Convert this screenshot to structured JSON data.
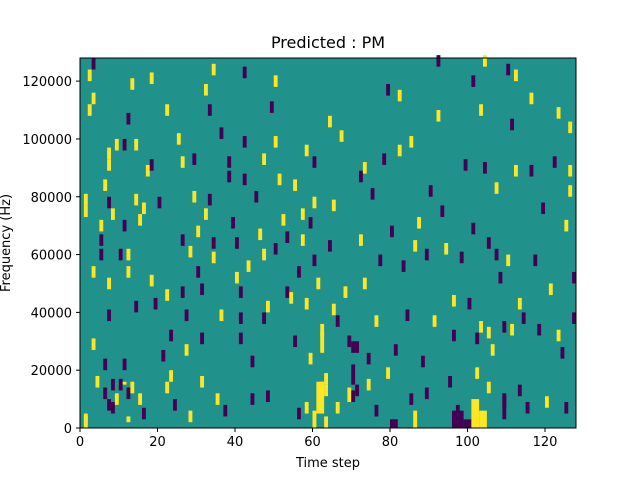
{
  "chart_data": {
    "type": "heatmap",
    "title": "Predicted : PM",
    "xlabel": "Time step",
    "ylabel": "Frequency (Hz)",
    "xlim": [
      0,
      128
    ],
    "ylim": [
      0,
      128000
    ],
    "x_ticks": [
      0,
      20,
      40,
      60,
      80,
      100,
      120
    ],
    "x_tick_labels": [
      "0",
      "20",
      "40",
      "60",
      "80",
      "100",
      "120"
    ],
    "y_ticks": [
      0,
      20000,
      40000,
      60000,
      80000,
      100000,
      120000
    ],
    "y_tick_labels": [
      "0",
      "20000",
      "40000",
      "60000",
      "80000",
      "100000",
      "120000"
    ],
    "grid": false,
    "colormap": "viridis",
    "colors": {
      "background": "#21918c",
      "high": "#fde725",
      "low": "#440154"
    },
    "n_time_steps": 128,
    "n_frequency_bins": 128,
    "bin_width_hz": 1000,
    "background_value": "medium",
    "cells": [
      {
        "t": 1,
        "f": 0,
        "v": "high"
      },
      {
        "t": 1,
        "f": 1,
        "v": "high"
      },
      {
        "t": 3,
        "f": 124,
        "v": "low"
      },
      {
        "t": 2,
        "f": 120,
        "v": "high"
      },
      {
        "t": 3,
        "f": 112,
        "v": "high"
      },
      {
        "t": 2,
        "f": 108,
        "v": "high"
      },
      {
        "t": 1,
        "f": 77,
        "v": "high"
      },
      {
        "t": 1,
        "f": 73,
        "v": "high"
      },
      {
        "t": 3,
        "f": 52,
        "v": "high"
      },
      {
        "t": 3,
        "f": 27,
        "v": "high"
      },
      {
        "t": 4,
        "f": 14,
        "v": "high"
      },
      {
        "t": 5,
        "f": 68,
        "v": "high"
      },
      {
        "t": 5,
        "f": 63,
        "v": "low"
      },
      {
        "t": 5,
        "f": 58,
        "v": "low"
      },
      {
        "t": 6,
        "f": 82,
        "v": "high"
      },
      {
        "t": 6,
        "f": 20,
        "v": "low"
      },
      {
        "t": 6,
        "f": 10,
        "v": "low"
      },
      {
        "t": 7,
        "f": 93,
        "v": "high"
      },
      {
        "t": 7,
        "f": 89,
        "v": "high"
      },
      {
        "t": 7,
        "f": 76,
        "v": "low"
      },
      {
        "t": 7,
        "f": 48,
        "v": "high"
      },
      {
        "t": 7,
        "f": 37,
        "v": "low"
      },
      {
        "t": 7,
        "f": 6,
        "v": "low"
      },
      {
        "t": 8,
        "f": 72,
        "v": "high"
      },
      {
        "t": 8,
        "f": 13,
        "v": "low"
      },
      {
        "t": 8,
        "f": 5,
        "v": "low"
      },
      {
        "t": 9,
        "f": 96,
        "v": "high"
      },
      {
        "t": 9,
        "f": 8,
        "v": "high"
      },
      {
        "t": 10,
        "f": 58,
        "v": "low"
      },
      {
        "t": 10,
        "f": 13,
        "v": "low"
      },
      {
        "t": 11,
        "f": 96,
        "v": "low"
      },
      {
        "t": 11,
        "f": 68,
        "v": "low"
      },
      {
        "t": 11,
        "f": 20,
        "v": "low"
      },
      {
        "t": 12,
        "f": 105,
        "v": "low"
      },
      {
        "t": 12,
        "f": 58,
        "v": "high"
      },
      {
        "t": 12,
        "f": 52,
        "v": "high"
      },
      {
        "t": 12,
        "f": 10,
        "v": "low"
      },
      {
        "t": 13,
        "f": 117,
        "v": "high"
      },
      {
        "t": 13,
        "f": 12,
        "v": "high"
      },
      {
        "t": 14,
        "f": 96,
        "v": "high"
      },
      {
        "t": 14,
        "f": 77,
        "v": "high"
      },
      {
        "t": 14,
        "f": 40,
        "v": "low"
      },
      {
        "t": 15,
        "f": 70,
        "v": "high"
      },
      {
        "t": 15,
        "f": 8,
        "v": "high"
      },
      {
        "t": 16,
        "f": 74,
        "v": "high"
      },
      {
        "t": 16,
        "f": 3,
        "v": "low"
      },
      {
        "t": 17,
        "f": 87,
        "v": "high"
      },
      {
        "t": 18,
        "f": 119,
        "v": "high"
      },
      {
        "t": 18,
        "f": 89,
        "v": "low"
      },
      {
        "t": 18,
        "f": 49,
        "v": "high"
      },
      {
        "t": 19,
        "f": 41,
        "v": "low"
      },
      {
        "t": 20,
        "f": 76,
        "v": "low"
      },
      {
        "t": 21,
        "f": 23,
        "v": "low"
      },
      {
        "t": 22,
        "f": 108,
        "v": "high"
      },
      {
        "t": 22,
        "f": 44,
        "v": "high"
      },
      {
        "t": 22,
        "f": 12,
        "v": "high"
      },
      {
        "t": 23,
        "f": 30,
        "v": "low"
      },
      {
        "t": 23,
        "f": 16,
        "v": "high"
      },
      {
        "t": 24,
        "f": 6,
        "v": "low"
      },
      {
        "t": 25,
        "f": 98,
        "v": "high"
      },
      {
        "t": 26,
        "f": 90,
        "v": "high"
      },
      {
        "t": 26,
        "f": 63,
        "v": "low"
      },
      {
        "t": 26,
        "f": 45,
        "v": "low"
      },
      {
        "t": 27,
        "f": 37,
        "v": "low"
      },
      {
        "t": 27,
        "f": 25,
        "v": "high"
      },
      {
        "t": 28,
        "f": 59,
        "v": "high"
      },
      {
        "t": 28,
        "f": 2,
        "v": "high"
      },
      {
        "t": 29,
        "f": 91,
        "v": "low"
      },
      {
        "t": 29,
        "f": 78,
        "v": "high"
      },
      {
        "t": 30,
        "f": 66,
        "v": "high"
      },
      {
        "t": 30,
        "f": 52,
        "v": "low"
      },
      {
        "t": 31,
        "f": 46,
        "v": "low"
      },
      {
        "t": 31,
        "f": 29,
        "v": "low"
      },
      {
        "t": 31,
        "f": 14,
        "v": "high"
      },
      {
        "t": 32,
        "f": 115,
        "v": "high"
      },
      {
        "t": 32,
        "f": 72,
        "v": "high"
      },
      {
        "t": 33,
        "f": 108,
        "v": "low"
      },
      {
        "t": 33,
        "f": 77,
        "v": "low"
      },
      {
        "t": 34,
        "f": 122,
        "v": "high"
      },
      {
        "t": 34,
        "f": 62,
        "v": "low"
      },
      {
        "t": 34,
        "f": 57,
        "v": "high"
      },
      {
        "t": 35,
        "f": 8,
        "v": "high"
      },
      {
        "t": 36,
        "f": 100,
        "v": "low"
      },
      {
        "t": 36,
        "f": 37,
        "v": "high"
      },
      {
        "t": 37,
        "f": 4,
        "v": "low"
      },
      {
        "t": 38,
        "f": 90,
        "v": "low"
      },
      {
        "t": 38,
        "f": 85,
        "v": "low"
      },
      {
        "t": 39,
        "f": 69,
        "v": "low"
      },
      {
        "t": 40,
        "f": 62,
        "v": "low"
      },
      {
        "t": 40,
        "f": 50,
        "v": "high"
      },
      {
        "t": 41,
        "f": 45,
        "v": "low"
      },
      {
        "t": 41,
        "f": 36,
        "v": "low"
      },
      {
        "t": 41,
        "f": 29,
        "v": "low"
      },
      {
        "t": 42,
        "f": 121,
        "v": "low"
      },
      {
        "t": 42,
        "f": 97,
        "v": "low"
      },
      {
        "t": 42,
        "f": 84,
        "v": "low"
      },
      {
        "t": 43,
        "f": 54,
        "v": "high"
      },
      {
        "t": 44,
        "f": 21,
        "v": "low"
      },
      {
        "t": 44,
        "f": 8,
        "v": "low"
      },
      {
        "t": 45,
        "f": 78,
        "v": "low"
      },
      {
        "t": 46,
        "f": 65,
        "v": "high"
      },
      {
        "t": 47,
        "f": 91,
        "v": "high"
      },
      {
        "t": 47,
        "f": 58,
        "v": "high"
      },
      {
        "t": 47,
        "f": 36,
        "v": "low"
      },
      {
        "t": 48,
        "f": 40,
        "v": "high"
      },
      {
        "t": 48,
        "f": 9,
        "v": "low"
      },
      {
        "t": 49,
        "f": 109,
        "v": "low"
      },
      {
        "t": 50,
        "f": 118,
        "v": "high"
      },
      {
        "t": 50,
        "f": 97,
        "v": "high"
      },
      {
        "t": 50,
        "f": 60,
        "v": "low"
      },
      {
        "t": 51,
        "f": 84,
        "v": "high"
      },
      {
        "t": 52,
        "f": 70,
        "v": "high"
      },
      {
        "t": 53,
        "f": 64,
        "v": "low"
      },
      {
        "t": 53,
        "f": 45,
        "v": "low"
      },
      {
        "t": 54,
        "f": 43,
        "v": "high"
      },
      {
        "t": 55,
        "f": 82,
        "v": "high"
      },
      {
        "t": 55,
        "f": 28,
        "v": "low"
      },
      {
        "t": 56,
        "f": 52,
        "v": "low"
      },
      {
        "t": 56,
        "f": 3,
        "v": "low"
      },
      {
        "t": 57,
        "f": 72,
        "v": "high"
      },
      {
        "t": 57,
        "f": 63,
        "v": "high"
      },
      {
        "t": 58,
        "f": 94,
        "v": "high"
      },
      {
        "t": 58,
        "f": 41,
        "v": "high"
      },
      {
        "t": 58,
        "f": 5,
        "v": "high"
      },
      {
        "t": 59,
        "f": 69,
        "v": "low"
      },
      {
        "t": 59,
        "f": 22,
        "v": "high"
      },
      {
        "t": 60,
        "f": 90,
        "v": "low"
      },
      {
        "t": 60,
        "f": 76,
        "v": "high"
      },
      {
        "t": 60,
        "f": 56,
        "v": "low"
      },
      {
        "t": 61,
        "f": 48,
        "v": "high"
      },
      {
        "t": 62,
        "f": 32,
        "v": "high"
      },
      {
        "t": 62,
        "f": 12,
        "v": "high"
      },
      {
        "t": 63,
        "f": 15,
        "v": "high"
      },
      {
        "t": 63,
        "f": 11,
        "v": "high"
      },
      {
        "t": 64,
        "f": 104,
        "v": "high"
      },
      {
        "t": 64,
        "f": 61,
        "v": "low"
      },
      {
        "t": 65,
        "f": 75,
        "v": "high"
      },
      {
        "t": 65,
        "f": 39,
        "v": "high"
      },
      {
        "t": 66,
        "f": 35,
        "v": "low"
      },
      {
        "t": 66,
        "f": 5,
        "v": "high"
      },
      {
        "t": 67,
        "f": 99,
        "v": "high"
      },
      {
        "t": 68,
        "f": 45,
        "v": "high"
      },
      {
        "t": 69,
        "f": 28,
        "v": "low"
      },
      {
        "t": 70,
        "f": 9,
        "v": "low"
      },
      {
        "t": 71,
        "f": 11,
        "v": "low"
      },
      {
        "t": 72,
        "f": 85,
        "v": "low"
      },
      {
        "t": 72,
        "f": 63,
        "v": "high"
      },
      {
        "t": 73,
        "f": 88,
        "v": "high"
      },
      {
        "t": 73,
        "f": 48,
        "v": "high"
      },
      {
        "t": 74,
        "f": 22,
        "v": "low"
      },
      {
        "t": 74,
        "f": 13,
        "v": "high"
      },
      {
        "t": 75,
        "f": 79,
        "v": "low"
      },
      {
        "t": 76,
        "f": 35,
        "v": "high"
      },
      {
        "t": 76,
        "f": 4,
        "v": "low"
      },
      {
        "t": 77,
        "f": 56,
        "v": "low"
      },
      {
        "t": 78,
        "f": 91,
        "v": "low"
      },
      {
        "t": 79,
        "f": 115,
        "v": "low"
      },
      {
        "t": 79,
        "f": 17,
        "v": "high"
      },
      {
        "t": 80,
        "f": 66,
        "v": "low"
      },
      {
        "t": 81,
        "f": 25,
        "v": "low"
      },
      {
        "t": 82,
        "f": 113,
        "v": "high"
      },
      {
        "t": 82,
        "f": 94,
        "v": "high"
      },
      {
        "t": 83,
        "f": 54,
        "v": "low"
      },
      {
        "t": 84,
        "f": 37,
        "v": "low"
      },
      {
        "t": 85,
        "f": 97,
        "v": "high"
      },
      {
        "t": 85,
        "f": 8,
        "v": "low"
      },
      {
        "t": 86,
        "f": 61,
        "v": "high"
      },
      {
        "t": 87,
        "f": 69,
        "v": "high"
      },
      {
        "t": 88,
        "f": 21,
        "v": "low"
      },
      {
        "t": 89,
        "f": 58,
        "v": "low"
      },
      {
        "t": 89,
        "f": 10,
        "v": "low"
      },
      {
        "t": 90,
        "f": 80,
        "v": "low"
      },
      {
        "t": 91,
        "f": 35,
        "v": "high"
      },
      {
        "t": 92,
        "f": 125,
        "v": "low"
      },
      {
        "t": 92,
        "f": 106,
        "v": "high"
      },
      {
        "t": 93,
        "f": 73,
        "v": "low"
      },
      {
        "t": 94,
        "f": 60,
        "v": "high"
      },
      {
        "t": 95,
        "f": 14,
        "v": "low"
      },
      {
        "t": 96,
        "f": 42,
        "v": "high"
      },
      {
        "t": 96,
        "f": 30,
        "v": "low"
      },
      {
        "t": 97,
        "f": 4,
        "v": "low"
      },
      {
        "t": 98,
        "f": 57,
        "v": "low"
      },
      {
        "t": 99,
        "f": 89,
        "v": "low"
      },
      {
        "t": 100,
        "f": 41,
        "v": "low"
      },
      {
        "t": 101,
        "f": 118,
        "v": "low"
      },
      {
        "t": 101,
        "f": 67,
        "v": "low"
      },
      {
        "t": 102,
        "f": 29,
        "v": "low"
      },
      {
        "t": 102,
        "f": 17,
        "v": "high"
      },
      {
        "t": 103,
        "f": 108,
        "v": "high"
      },
      {
        "t": 103,
        "f": 33,
        "v": "high"
      },
      {
        "t": 104,
        "f": 125,
        "v": "high"
      },
      {
        "t": 104,
        "f": 88,
        "v": "low"
      },
      {
        "t": 105,
        "f": 62,
        "v": "low"
      },
      {
        "t": 105,
        "f": 31,
        "v": "high"
      },
      {
        "t": 106,
        "f": 25,
        "v": "high"
      },
      {
        "t": 107,
        "f": 81,
        "v": "high"
      },
      {
        "t": 107,
        "f": 58,
        "v": "low"
      },
      {
        "t": 108,
        "f": 50,
        "v": "low"
      },
      {
        "t": 109,
        "f": 33,
        "v": "low"
      },
      {
        "t": 109,
        "f": 7,
        "v": "low"
      },
      {
        "t": 110,
        "f": 122,
        "v": "low"
      },
      {
        "t": 110,
        "f": 56,
        "v": "high"
      },
      {
        "t": 111,
        "f": 32,
        "v": "high"
      },
      {
        "t": 111,
        "f": 103,
        "v": "low"
      },
      {
        "t": 112,
        "f": 120,
        "v": "high"
      },
      {
        "t": 112,
        "f": 87,
        "v": "high"
      },
      {
        "t": 113,
        "f": 41,
        "v": "high"
      },
      {
        "t": 113,
        "f": 11,
        "v": "low"
      },
      {
        "t": 114,
        "f": 36,
        "v": "low"
      },
      {
        "t": 115,
        "f": 5,
        "v": "low"
      },
      {
        "t": 116,
        "f": 112,
        "v": "high"
      },
      {
        "t": 116,
        "f": 87,
        "v": "low"
      },
      {
        "t": 117,
        "f": 56,
        "v": "low"
      },
      {
        "t": 118,
        "f": 32,
        "v": "low"
      },
      {
        "t": 119,
        "f": 74,
        "v": "low"
      },
      {
        "t": 120,
        "f": 7,
        "v": "high"
      },
      {
        "t": 121,
        "f": 46,
        "v": "high"
      },
      {
        "t": 122,
        "f": 90,
        "v": "low"
      },
      {
        "t": 123,
        "f": 30,
        "v": "high"
      },
      {
        "t": 123,
        "f": 107,
        "v": "high"
      },
      {
        "t": 124,
        "f": 24,
        "v": "low"
      },
      {
        "t": 125,
        "f": 68,
        "v": "high"
      },
      {
        "t": 125,
        "f": 5,
        "v": "low"
      },
      {
        "t": 126,
        "f": 102,
        "v": "high"
      },
      {
        "t": 126,
        "f": 87,
        "v": "high"
      },
      {
        "t": 126,
        "f": 80,
        "v": "high"
      },
      {
        "t": 127,
        "f": 50,
        "v": "low"
      },
      {
        "t": 127,
        "f": 36,
        "v": "low"
      }
    ],
    "blocks": [
      {
        "t0": 10,
        "t1": 12,
        "f0": 15,
        "f1": 16,
        "v": "high"
      },
      {
        "t0": 12,
        "t1": 13,
        "f0": 2,
        "f1": 4,
        "v": "high"
      },
      {
        "t0": 61,
        "t1": 63,
        "f0": 5,
        "f1": 16,
        "v": "high"
      },
      {
        "t0": 60,
        "t1": 61,
        "f0": 0,
        "f1": 6,
        "v": "high"
      },
      {
        "t0": 62,
        "t1": 63,
        "f0": 26,
        "f1": 33,
        "v": "high"
      },
      {
        "t0": 70,
        "t1": 72,
        "f0": 26,
        "f1": 30,
        "v": "low"
      },
      {
        "t0": 70,
        "t1": 71,
        "f0": 15,
        "f1": 22,
        "v": "low"
      },
      {
        "t0": 96,
        "t1": 99,
        "f0": 0,
        "f1": 6,
        "v": "low"
      },
      {
        "t0": 99,
        "t1": 101,
        "f0": 0,
        "f1": 3,
        "v": "low"
      },
      {
        "t0": 101,
        "t1": 103,
        "f0": 0,
        "f1": 10,
        "v": "high"
      },
      {
        "t0": 103,
        "t1": 105,
        "f0": 0,
        "f1": 6,
        "v": "high"
      },
      {
        "t0": 105,
        "t1": 106,
        "f0": 12,
        "f1": 16,
        "v": "high"
      },
      {
        "t0": 109,
        "t1": 110,
        "f0": 3,
        "f1": 12,
        "v": "low"
      },
      {
        "t0": 80,
        "t1": 82,
        "f0": 0,
        "f1": 3,
        "v": "low"
      },
      {
        "t0": 86,
        "t1": 87,
        "f0": 0,
        "f1": 6,
        "v": "high"
      },
      {
        "t0": 69,
        "t1": 70,
        "f0": 9,
        "f1": 14,
        "v": "high"
      },
      {
        "t0": 63,
        "t1": 64,
        "f0": 0,
        "f1": 4,
        "v": "high"
      }
    ]
  }
}
